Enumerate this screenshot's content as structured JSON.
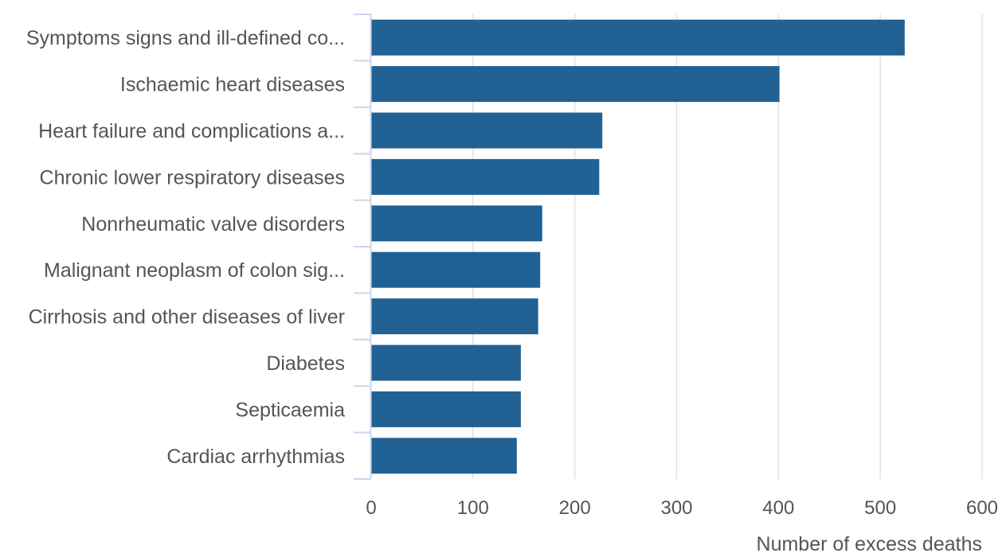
{
  "chart_data": {
    "type": "bar",
    "orientation": "horizontal",
    "categories": [
      "Symptoms signs and ill-defined co...",
      "Ischaemic heart diseases",
      "Heart failure and complications a...",
      "Chronic lower respiratory diseases",
      "Nonrheumatic valve disorders",
      "Malignant neoplasm of colon sig...",
      "Cirrhosis and other diseases of liver",
      "Diabetes",
      "Septicaemia",
      "Cardiac arrhythmias"
    ],
    "values": [
      524,
      401,
      227,
      224,
      168,
      166,
      164,
      147,
      147,
      143
    ],
    "xlabel": "Number of excess deaths",
    "ylabel": "",
    "xlim": [
      0,
      600
    ],
    "xticks": [
      0,
      100,
      200,
      300,
      400,
      500,
      600
    ],
    "grid": "vertical",
    "legend": "none",
    "colors": {
      "bar": "#216194",
      "grid": "#e0e0e0",
      "axis": "#ccd6eb",
      "text": "#555555"
    }
  }
}
